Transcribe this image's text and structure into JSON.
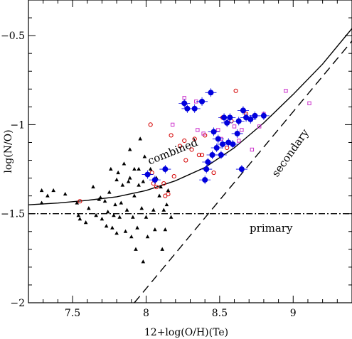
{
  "chart_data": {
    "type": "scatter",
    "xlabel": "12+log(O/H)(Te)",
    "ylabel": "log(N/O)",
    "xlim": [
      7.2,
      9.4
    ],
    "ylim": [
      -2.0,
      -0.3
    ],
    "xticks": [
      "7.5",
      "8",
      "8.5",
      "9"
    ],
    "xtick_values": [
      7.5,
      8.0,
      8.5,
      9.0
    ],
    "yticks": [
      "−0.5",
      "−1",
      "−1.5",
      "−2"
    ],
    "ytick_values": [
      -0.5,
      -1.0,
      -1.5,
      -2.0
    ],
    "grid": false,
    "annotations": [
      {
        "text": "primary",
        "x": 8.85,
        "y": -1.6
      },
      {
        "text": "secondary",
        "x": 9.0,
        "y": -1.17
      },
      {
        "text": "combined",
        "x": 8.19,
        "y": -1.17
      }
    ],
    "curves": [
      {
        "label": "primary",
        "style": "dash-dot",
        "points": [
          [
            7.2,
            -1.5
          ],
          [
            9.4,
            -1.5
          ]
        ]
      },
      {
        "label": "secondary",
        "style": "dashed",
        "points": [
          [
            7.92,
            -2.0
          ],
          [
            9.4,
            -0.53
          ]
        ]
      },
      {
        "label": "combined",
        "style": "solid",
        "points": [
          [
            7.2,
            -1.45
          ],
          [
            7.4,
            -1.44
          ],
          [
            7.6,
            -1.425
          ],
          [
            7.8,
            -1.405
          ],
          [
            8.0,
            -1.37
          ],
          [
            8.2,
            -1.315
          ],
          [
            8.4,
            -1.24
          ],
          [
            8.6,
            -1.13
          ],
          [
            8.8,
            -0.99
          ],
          [
            9.0,
            -0.83
          ],
          [
            9.2,
            -0.66
          ],
          [
            9.4,
            -0.46
          ]
        ]
      }
    ],
    "series": [
      {
        "marker": "filled-triangle",
        "color": "#000000",
        "points": [
          [
            7.29,
            -1.37
          ],
          [
            7.29,
            -1.44
          ],
          [
            7.33,
            -1.4
          ],
          [
            7.37,
            -1.37
          ],
          [
            7.45,
            -1.39
          ],
          [
            7.53,
            -1.44
          ],
          [
            7.54,
            -1.51
          ],
          [
            7.55,
            -1.53
          ],
          [
            7.59,
            -1.55
          ],
          [
            7.61,
            -1.47
          ],
          [
            7.64,
            -1.35
          ],
          [
            7.66,
            -1.51
          ],
          [
            7.68,
            -1.42
          ],
          [
            7.69,
            -1.41
          ],
          [
            7.7,
            -1.53
          ],
          [
            7.72,
            -1.43
          ],
          [
            7.73,
            -1.57
          ],
          [
            7.74,
            -1.49
          ],
          [
            7.75,
            -1.38
          ],
          [
            7.76,
            -1.25
          ],
          [
            7.77,
            -1.58
          ],
          [
            7.78,
            -1.51
          ],
          [
            7.79,
            -1.45
          ],
          [
            7.8,
            -1.31
          ],
          [
            7.8,
            -1.61
          ],
          [
            7.81,
            -1.27
          ],
          [
            7.82,
            -1.52
          ],
          [
            7.83,
            -1.44
          ],
          [
            7.84,
            -1.34
          ],
          [
            7.85,
            -1.22
          ],
          [
            7.86,
            -1.6
          ],
          [
            7.87,
            -1.48
          ],
          [
            7.88,
            -1.32
          ],
          [
            7.89,
            -1.3
          ],
          [
            7.89,
            -1.14
          ],
          [
            7.9,
            -1.63
          ],
          [
            7.91,
            -1.52
          ],
          [
            7.92,
            -1.4
          ],
          [
            7.92,
            -1.25
          ],
          [
            7.93,
            -1.7
          ],
          [
            7.94,
            -1.58
          ],
          [
            7.95,
            -1.34
          ],
          [
            7.95,
            -1.25
          ],
          [
            7.96,
            -1.08
          ],
          [
            7.97,
            -1.47
          ],
          [
            7.98,
            -1.32
          ],
          [
            7.98,
            -1.77
          ],
          [
            7.99,
            -1.18
          ],
          [
            8.0,
            -1.52
          ],
          [
            8.01,
            -1.63
          ],
          [
            8.03,
            -1.25
          ],
          [
            8.05,
            -1.48
          ],
          [
            8.06,
            -1.59
          ],
          [
            8.07,
            -1.3
          ],
          [
            8.09,
            -1.4
          ],
          [
            8.1,
            -1.35
          ],
          [
            8.11,
            -1.7
          ],
          [
            8.12,
            -1.48
          ],
          [
            8.13,
            -1.59
          ],
          [
            8.14,
            -1.45
          ],
          [
            8.15,
            -1.37
          ],
          [
            8.17,
            -1.52
          ]
        ]
      },
      {
        "marker": "open-circle",
        "color": "#d40000",
        "points": [
          [
            7.55,
            -1.43
          ],
          [
            8.03,
            -1.0
          ],
          [
            8.04,
            -1.27
          ],
          [
            8.05,
            -1.33
          ],
          [
            8.07,
            -1.35
          ],
          [
            8.12,
            -1.33
          ],
          [
            8.13,
            -1.4
          ],
          [
            8.15,
            -1.39
          ],
          [
            8.17,
            -1.06
          ],
          [
            8.19,
            -1.29
          ],
          [
            8.23,
            -1.12
          ],
          [
            8.26,
            -1.09
          ],
          [
            8.27,
            -1.2
          ],
          [
            8.31,
            -1.14
          ],
          [
            8.33,
            -1.08
          ],
          [
            8.36,
            -1.17
          ],
          [
            8.38,
            -1.17
          ],
          [
            8.4,
            -1.06
          ],
          [
            8.46,
            -1.27
          ],
          [
            8.52,
            -0.96
          ],
          [
            8.55,
            -1.13
          ],
          [
            8.58,
            -0.98
          ],
          [
            8.61,
            -0.81
          ],
          [
            8.68,
            -0.94
          ]
        ]
      },
      {
        "marker": "open-square",
        "color": "#cc33cc",
        "points": [
          [
            8.18,
            -1.0
          ],
          [
            8.26,
            -0.85
          ],
          [
            8.34,
            -0.87
          ],
          [
            8.35,
            -1.03
          ],
          [
            8.39,
            -1.05
          ],
          [
            8.49,
            -1.03
          ],
          [
            8.51,
            -1.08
          ],
          [
            8.6,
            -1.01
          ],
          [
            8.63,
            -1.09
          ],
          [
            8.65,
            -1.03
          ],
          [
            8.72,
            -1.14
          ],
          [
            8.77,
            -1.01
          ],
          [
            8.8,
            -0.94
          ],
          [
            8.95,
            -0.81
          ],
          [
            9.11,
            -0.88
          ]
        ]
      },
      {
        "marker": "filled-circle-errorbar",
        "color": "#0000dd",
        "points": [
          [
            8.01,
            -1.28
          ],
          [
            8.06,
            -1.31
          ],
          [
            8.13,
            -1.25
          ],
          [
            8.26,
            -0.88
          ],
          [
            8.28,
            -0.91
          ],
          [
            8.33,
            -0.91
          ],
          [
            8.38,
            -0.87
          ],
          [
            8.4,
            -1.31
          ],
          [
            8.41,
            -1.25
          ],
          [
            8.42,
            -1.21
          ],
          [
            8.44,
            -0.82
          ],
          [
            8.45,
            -1.17
          ],
          [
            8.46,
            -1.04
          ],
          [
            8.48,
            -1.13
          ],
          [
            8.49,
            -1.08
          ],
          [
            8.51,
            -1.17
          ],
          [
            8.52,
            -1.11
          ],
          [
            8.53,
            -0.96
          ],
          [
            8.55,
            -0.99
          ],
          [
            8.56,
            -1.1
          ],
          [
            8.57,
            -0.96
          ],
          [
            8.59,
            -1.11
          ],
          [
            8.62,
            -1.05
          ],
          [
            8.63,
            -0.98
          ],
          [
            8.65,
            -1.25
          ],
          [
            8.66,
            -0.92
          ],
          [
            8.68,
            -0.96
          ],
          [
            8.71,
            -0.97
          ],
          [
            8.74,
            -0.95
          ],
          [
            8.8,
            -0.95
          ]
        ]
      }
    ]
  }
}
